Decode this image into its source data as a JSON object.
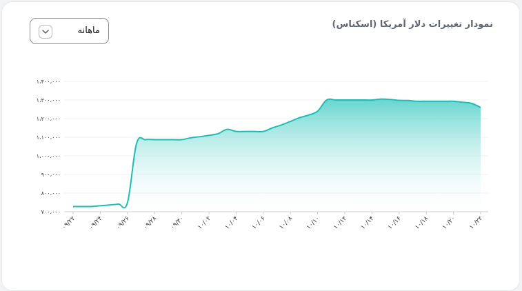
{
  "header": {
    "title": "نمودار تغییرات دلار آمریکا (اسکناس)"
  },
  "period_select": {
    "selected": "ماهانه",
    "icon": "chevron-down-icon"
  },
  "colors": {
    "line": "#1fbcb5",
    "fill_top": "#5ed3cc",
    "fill_bottom": "#ffffff",
    "grid": "#eef0f2",
    "axis": "#c7cbd1"
  },
  "chart_data": {
    "type": "area",
    "title": "نمودار تغییرات دلار آمریکا (اسکناس)",
    "xlabel": "",
    "ylabel": "",
    "ylim": [
      700000,
      1400000
    ],
    "grid": true,
    "y_ticks": [
      700000,
      800000,
      900000,
      1000000,
      1100000,
      1200000,
      1300000,
      1400000
    ],
    "y_tick_labels": [
      "۷۰۰،۰۰۰",
      "۸۰۰،۰۰۰",
      "۹۰۰،۰۰۰",
      "۱،۰۰۰،۰۰۰",
      "۱،۱۰۰،۰۰۰",
      "۱،۲۰۰،۰۰۰",
      "۱،۳۰۰،۰۰۰",
      "۱،۴۰۰،۰۰۰"
    ],
    "x_tick_labels": [
      "۰۹/۲۲",
      "۰۹/۲۴",
      "۰۹/۲۶",
      "۰۹/۲۸",
      "۰۹/۳۰",
      "۱۰/۰۲",
      "۱۰/۰۴",
      "۱۰/۰۶",
      "۱۰/۰۸",
      "۱۰/۱۰",
      "۱۰/۱۲",
      "۱۰/۱۴",
      "۱۰/۱۶",
      "۱۰/۱۸",
      "۱۰/۲۰",
      "۱۰/۲۲"
    ],
    "series": [
      {
        "values": [
          728000,
          728000,
          728000,
          732000,
          736000,
          741000,
          748000,
          1065000,
          1087000,
          1087000,
          1087000,
          1087000,
          1087000,
          1097000,
          1103000,
          1110000,
          1119000,
          1142000,
          1131000,
          1131000,
          1131000,
          1131000,
          1150000,
          1166000,
          1185000,
          1205000,
          1219000,
          1240000,
          1300000,
          1300000,
          1300000,
          1300000,
          1300000,
          1300000,
          1305000,
          1303000,
          1298000,
          1297000,
          1293000,
          1293000,
          1293000,
          1293000,
          1293000,
          1288000,
          1282000,
          1260000
        ]
      }
    ]
  }
}
